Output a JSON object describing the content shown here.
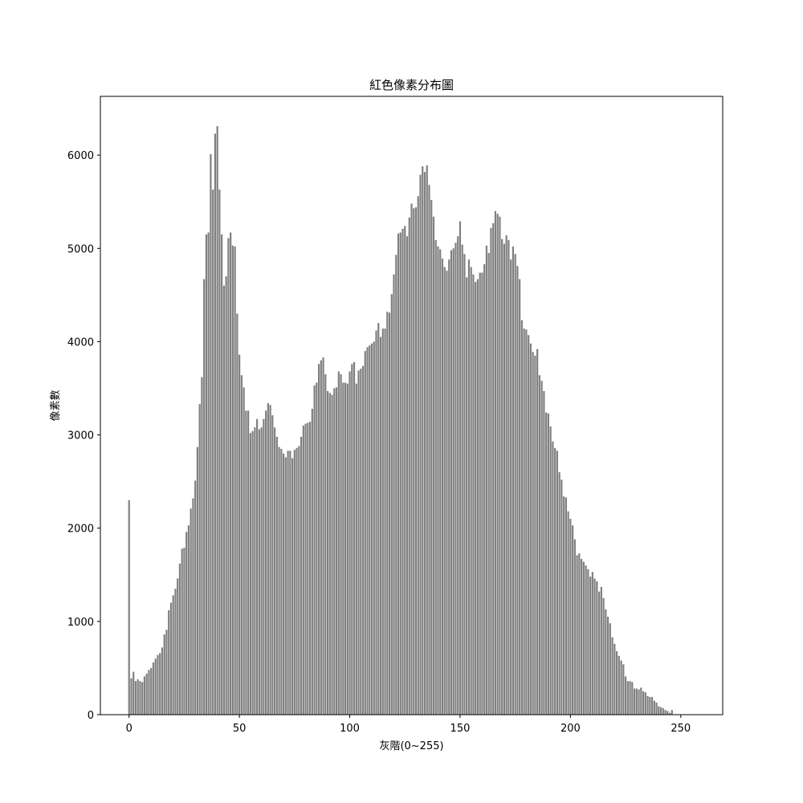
{
  "chart_data": {
    "type": "bar",
    "title": "紅色像素分布圖",
    "xlabel": "灰階(0~255)",
    "ylabel": "像素數",
    "bar_color": "#808080",
    "xlim": [
      -13,
      269
    ],
    "ylim": [
      0,
      6630
    ],
    "xticks": [
      0,
      50,
      100,
      150,
      200,
      250
    ],
    "yticks": [
      0,
      1000,
      2000,
      3000,
      4000,
      5000,
      6000
    ],
    "grid": false,
    "x_start": 0,
    "values": [
      2300,
      390,
      460,
      360,
      380,
      360,
      350,
      410,
      440,
      480,
      500,
      560,
      600,
      640,
      660,
      720,
      860,
      910,
      1120,
      1200,
      1280,
      1350,
      1460,
      1620,
      1780,
      1790,
      1960,
      2030,
      2210,
      2320,
      2510,
      2870,
      3330,
      3620,
      4670,
      5150,
      5170,
      6010,
      5630,
      6230,
      6310,
      5630,
      5150,
      4600,
      4700,
      5110,
      5170,
      5030,
      5020,
      4300,
      3860,
      3640,
      3510,
      3260,
      3260,
      3020,
      3040,
      3080,
      3170,
      3060,
      3080,
      3170,
      3260,
      3340,
      3320,
      3210,
      3080,
      2980,
      2870,
      2850,
      2800,
      2760,
      2830,
      2830,
      2750,
      2840,
      2860,
      2880,
      2980,
      3100,
      3120,
      3130,
      3140,
      3280,
      3530,
      3560,
      3760,
      3800,
      3830,
      3650,
      3470,
      3450,
      3430,
      3500,
      3510,
      3680,
      3650,
      3560,
      3560,
      3550,
      3680,
      3760,
      3780,
      3550,
      3690,
      3710,
      3740,
      3900,
      3940,
      3960,
      3980,
      4000,
      4120,
      4200,
      4050,
      4140,
      4140,
      4320,
      4310,
      4510,
      4720,
      4930,
      5160,
      5170,
      5210,
      5240,
      5130,
      5330,
      5480,
      5430,
      5440,
      5560,
      5790,
      5880,
      5820,
      5890,
      5680,
      5520,
      5340,
      5090,
      5020,
      4990,
      4890,
      4800,
      4760,
      4880,
      4980,
      5000,
      5060,
      5130,
      5290,
      5040,
      4940,
      4690,
      4880,
      4800,
      4720,
      4640,
      4670,
      4740,
      4740,
      4830,
      5030,
      4950,
      5220,
      5270,
      5400,
      5370,
      5340,
      5100,
      5050,
      5140,
      5090,
      4880,
      5020,
      4940,
      4810,
      4670,
      4230,
      4140,
      4130,
      4070,
      3980,
      3890,
      3850,
      3920,
      3640,
      3580,
      3470,
      3240,
      3230,
      3090,
      2930,
      2860,
      2830,
      2600,
      2520,
      2340,
      2330,
      2180,
      2100,
      2030,
      1880,
      1710,
      1730,
      1670,
      1640,
      1600,
      1560,
      1480,
      1530,
      1460,
      1430,
      1320,
      1370,
      1250,
      1130,
      1050,
      980,
      830,
      760,
      680,
      630,
      580,
      540,
      410,
      360,
      360,
      350,
      280,
      280,
      270,
      290,
      250,
      240,
      200,
      190,
      190,
      150,
      130,
      90,
      80,
      70,
      50,
      40,
      20,
      50
    ]
  }
}
